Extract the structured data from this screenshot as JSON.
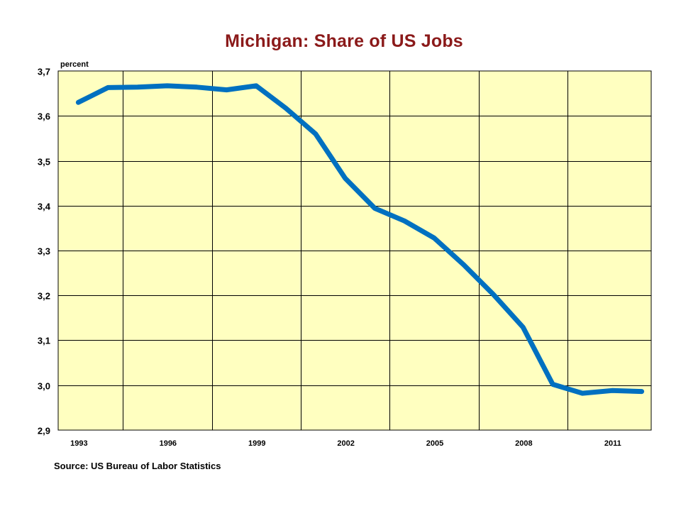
{
  "chart_data": {
    "type": "line",
    "title": "Michigan: Share of US Jobs",
    "ylabel": "percent",
    "xlabel": "",
    "source": "Source: US Bureau of Labor Statistics",
    "x": [
      1993,
      1994,
      1995,
      1996,
      1997,
      1998,
      1999,
      2000,
      2001,
      2002,
      2003,
      2004,
      2005,
      2006,
      2007,
      2008,
      2009,
      2010,
      2011,
      2012
    ],
    "series": [
      {
        "values": [
          3.63,
          3.663,
          3.664,
          3.667,
          3.664,
          3.658,
          3.667,
          3.617,
          3.56,
          3.461,
          3.394,
          3.366,
          3.328,
          3.268,
          3.202,
          3.129,
          3.002,
          2.982,
          2.988,
          2.986
        ]
      }
    ],
    "xticks": [
      "1993",
      "1996",
      "1999",
      "2002",
      "2005",
      "2008",
      "2011"
    ],
    "yticks": [
      "2,9",
      "3,0",
      "3,1",
      "3,2",
      "3,3",
      "3,4",
      "3,5",
      "3,6",
      "3,7"
    ],
    "ylim": [
      2.9,
      3.7
    ],
    "grid": true,
    "legend": "none",
    "colors": {
      "plot_background": "#ffffc0",
      "line": "#0070c0",
      "title": "#8b1a1a",
      "grid": "#000000"
    }
  }
}
